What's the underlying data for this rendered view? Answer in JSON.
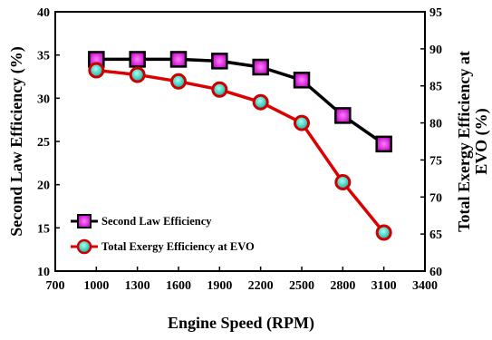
{
  "chart_data": {
    "type": "line",
    "x": [
      1000,
      1300,
      1600,
      1900,
      2200,
      2500,
      2800,
      3100
    ],
    "xlabel": "Engine Speed (RPM)",
    "ylabel": "Second Law Efficiency (%)",
    "y2label_line1": "Total Exergy Efficiency at",
    "y2label_line2": "EVO (%)",
    "xlim": [
      700,
      3400
    ],
    "xticks": [
      700,
      1000,
      1300,
      1600,
      1900,
      2200,
      2500,
      2800,
      3100,
      3400
    ],
    "ylim": [
      10,
      40
    ],
    "yticks": [
      10,
      15,
      20,
      25,
      30,
      35,
      40
    ],
    "y2lim": [
      60,
      95
    ],
    "y2ticks": [
      60,
      65,
      70,
      75,
      80,
      85,
      90,
      95
    ],
    "grid": false,
    "legend_position": "bottom-left",
    "series": [
      {
        "name": "Second Law Efficiency",
        "axis": "left",
        "values": [
          34.5,
          34.5,
          34.5,
          34.3,
          33.6,
          32.1,
          28.0,
          24.7
        ],
        "line_color": "#000000",
        "marker": "square",
        "marker_color": "#e020e0"
      },
      {
        "name": "Total Exergy Efficiency at EVO",
        "axis": "right",
        "values": [
          87.1,
          86.5,
          85.6,
          84.5,
          82.8,
          80.0,
          72.0,
          65.2
        ],
        "line_color": "#dd0000",
        "marker": "circle",
        "marker_color": "#20d0c0"
      }
    ]
  }
}
